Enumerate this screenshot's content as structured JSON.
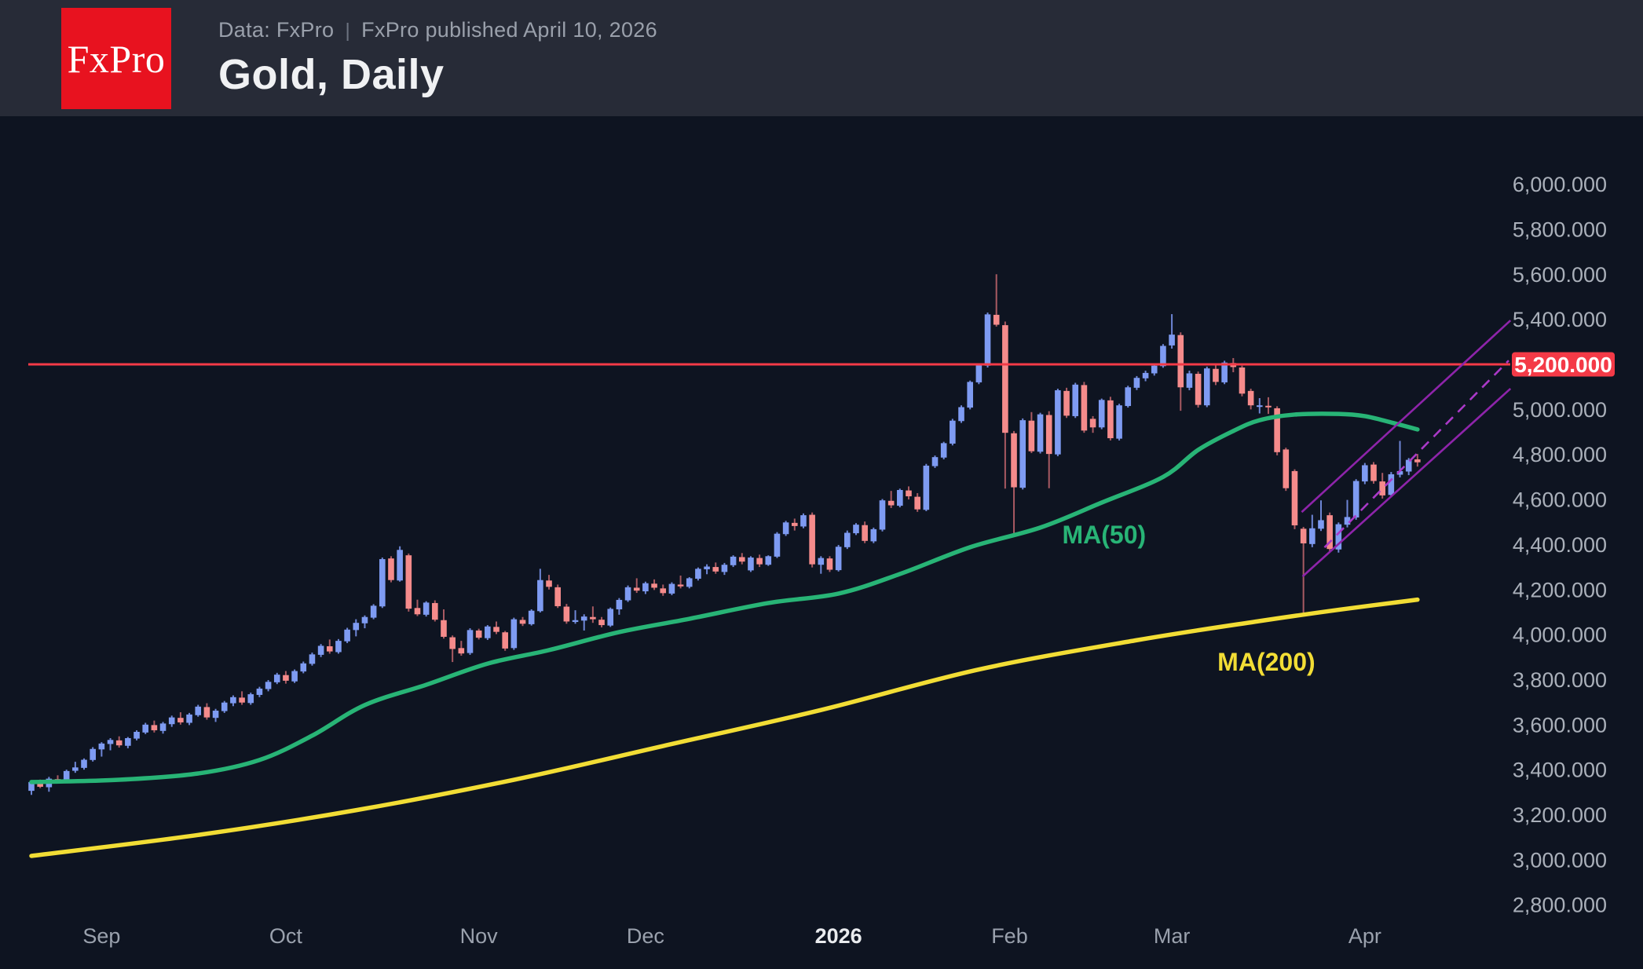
{
  "header": {
    "logo_text": "FxPro",
    "source": "Data: FxPro",
    "divider": "|",
    "published": "FxPro published April 10, 2026",
    "title": "Gold, Daily"
  },
  "colors": {
    "header_bg": "#272b37",
    "chart_bg": "#0e1421",
    "logo_bg": "#e8121f",
    "up_body": "#7e9bf2",
    "down_body": "#f58b8b",
    "up_wick": "#6e86d6",
    "down_wick": "#a85a62",
    "ma50": "#28b476",
    "ma200": "#f2dd35",
    "hline": "#f43a47",
    "badge_bg": "#f43a47",
    "badge_text": "#ffffff",
    "channel": "#8e24aa",
    "channel_dashed": "#aa39c8",
    "axis_text": "#aab0ba",
    "month_text": "#9aa1ad",
    "year_text": "#e9ebee"
  },
  "chart_data": {
    "type": "candlestick",
    "symbol": "Gold",
    "timeframe": "Daily",
    "title": "Gold, Daily",
    "grid": false,
    "legend_position": "none",
    "y_axis": {
      "side": "right",
      "min": 2700,
      "max": 6100,
      "tick_values": [
        6000,
        5800,
        5600,
        5400,
        5000,
        4800,
        4600,
        4400,
        4200,
        4000,
        3800,
        3600,
        3400,
        3200,
        3000,
        2800
      ],
      "tick_labels": [
        "6,000.000",
        "5,800.000",
        "5,600.000",
        "5,400.000",
        "5,000.000",
        "4,800.000",
        "4,600.000",
        "4,400.000",
        "4,200.000",
        "4,000.000",
        "3,800.000",
        "3,600.000",
        "3,400.000",
        "3,200.000",
        "3,000.000",
        "2,800.000"
      ]
    },
    "x_axis": {
      "ticks": [
        {
          "label": "Sep",
          "index": 8,
          "bold": false
        },
        {
          "label": "Oct",
          "index": 29,
          "bold": false
        },
        {
          "label": "Nov",
          "index": 51,
          "bold": false
        },
        {
          "label": "Dec",
          "index": 70,
          "bold": false
        },
        {
          "label": "2026",
          "index": 92,
          "bold": true
        },
        {
          "label": "Feb",
          "index": 111.5,
          "bold": false
        },
        {
          "label": "Mar",
          "index": 130,
          "bold": false
        },
        {
          "label": "Apr",
          "index": 152,
          "bold": false
        }
      ]
    },
    "resistance_line": {
      "price": 5200,
      "label": "5,200.000"
    },
    "ma50": {
      "label": "MA(50)",
      "label_index": 117.5,
      "label_price": 4443,
      "points": [
        [
          0,
          3345
        ],
        [
          10,
          3355
        ],
        [
          19,
          3383
        ],
        [
          26,
          3443
        ],
        [
          32,
          3551
        ],
        [
          38,
          3687
        ],
        [
          45,
          3777
        ],
        [
          52,
          3871
        ],
        [
          59,
          3931
        ],
        [
          67,
          4011
        ],
        [
          75,
          4070
        ],
        [
          84,
          4140
        ],
        [
          92,
          4182
        ],
        [
          99,
          4269
        ],
        [
          107,
          4388
        ],
        [
          115,
          4475
        ],
        [
          122,
          4586
        ],
        [
          129,
          4700
        ],
        [
          133,
          4820
        ],
        [
          137,
          4904
        ],
        [
          140,
          4952
        ],
        [
          144,
          4977
        ],
        [
          149,
          4980
        ],
        [
          152,
          4970
        ],
        [
          155,
          4942
        ],
        [
          158,
          4911
        ]
      ]
    },
    "ma200": {
      "label": "MA(200)",
      "label_index": 135.2,
      "label_price": 3878,
      "points": [
        [
          0,
          3017
        ],
        [
          19,
          3110
        ],
        [
          37,
          3220
        ],
        [
          55,
          3355
        ],
        [
          72,
          3505
        ],
        [
          90,
          3665
        ],
        [
          108,
          3845
        ],
        [
          126,
          3975
        ],
        [
          140,
          4060
        ],
        [
          149,
          4110
        ],
        [
          158,
          4155
        ]
      ]
    },
    "channel": {
      "upper": [
        [
          144.8,
          4544
        ],
        [
          168.6,
          5395
        ]
      ],
      "lower": [
        [
          144.9,
          4258
        ],
        [
          168.6,
          5092
        ]
      ],
      "median": [
        [
          147.4,
          4387
        ],
        [
          168.4,
          5217
        ]
      ]
    },
    "candles": [
      [
        3306,
        3352,
        3288,
        3345
      ],
      [
        3345,
        3356,
        3318,
        3324
      ],
      [
        3322,
        3368,
        3302,
        3360
      ],
      [
        3358,
        3375,
        3340,
        3352
      ],
      [
        3354,
        3400,
        3348,
        3394
      ],
      [
        3395,
        3435,
        3386,
        3410
      ],
      [
        3408,
        3450,
        3400,
        3444
      ],
      [
        3443,
        3500,
        3436,
        3492
      ],
      [
        3490,
        3522,
        3458,
        3516
      ],
      [
        3514,
        3540,
        3486,
        3532
      ],
      [
        3530,
        3548,
        3498,
        3508
      ],
      [
        3506,
        3545,
        3495,
        3540
      ],
      [
        3538,
        3575,
        3530,
        3568
      ],
      [
        3565,
        3608,
        3558,
        3600
      ],
      [
        3598,
        3618,
        3565,
        3575
      ],
      [
        3572,
        3612,
        3560,
        3605
      ],
      [
        3602,
        3640,
        3590,
        3632
      ],
      [
        3630,
        3655,
        3600,
        3610
      ],
      [
        3608,
        3652,
        3598,
        3645
      ],
      [
        3642,
        3688,
        3635,
        3680
      ],
      [
        3678,
        3695,
        3622,
        3632
      ],
      [
        3630,
        3670,
        3612,
        3662
      ],
      [
        3660,
        3705,
        3652,
        3698
      ],
      [
        3695,
        3730,
        3682,
        3722
      ],
      [
        3720,
        3748,
        3688,
        3698
      ],
      [
        3696,
        3742,
        3688,
        3735
      ],
      [
        3732,
        3768,
        3722,
        3760
      ],
      [
        3758,
        3798,
        3748,
        3790
      ],
      [
        3788,
        3830,
        3780,
        3822
      ],
      [
        3820,
        3838,
        3782,
        3795
      ],
      [
        3792,
        3845,
        3785,
        3838
      ],
      [
        3836,
        3880,
        3828,
        3872
      ],
      [
        3870,
        3920,
        3862,
        3912
      ],
      [
        3910,
        3958,
        3900,
        3950
      ],
      [
        3948,
        3978,
        3915,
        3925
      ],
      [
        3922,
        3980,
        3915,
        3972
      ],
      [
        3970,
        4030,
        3962,
        4022
      ],
      [
        4020,
        4068,
        3992,
        4052
      ],
      [
        4050,
        4085,
        4028,
        4078
      ],
      [
        4075,
        4135,
        4068,
        4128
      ],
      [
        4125,
        4342,
        4118,
        4335
      ],
      [
        4338,
        4348,
        4232,
        4242
      ],
      [
        4240,
        4392,
        4235,
        4376
      ],
      [
        4352,
        4360,
        4102,
        4115
      ],
      [
        4118,
        4155,
        4082,
        4090
      ],
      [
        4088,
        4148,
        4080,
        4142
      ],
      [
        4140,
        4152,
        4058,
        4066
      ],
      [
        4064,
        4112,
        3982,
        3990
      ],
      [
        3988,
        3996,
        3878,
        3936
      ],
      [
        3940,
        3972,
        3906,
        3916
      ],
      [
        3918,
        4028,
        3910,
        4020
      ],
      [
        4018,
        4026,
        3978,
        3986
      ],
      [
        3984,
        4042,
        3976,
        4036
      ],
      [
        4034,
        4058,
        4002,
        4012
      ],
      [
        4010,
        4016,
        3928,
        3938
      ],
      [
        3940,
        4075,
        3932,
        4068
      ],
      [
        4065,
        4078,
        4038,
        4048
      ],
      [
        4046,
        4112,
        4040,
        4106
      ],
      [
        4104,
        4292,
        4098,
        4242
      ],
      [
        4240,
        4265,
        4200,
        4212
      ],
      [
        4210,
        4222,
        4118,
        4126
      ],
      [
        4124,
        4136,
        4048,
        4058
      ],
      [
        4056,
        4108,
        4048,
        4064
      ],
      [
        4062,
        4090,
        4018,
        4080
      ],
      [
        4078,
        4125,
        4052,
        4068
      ],
      [
        4066,
        4078,
        4032,
        4042
      ],
      [
        4040,
        4120,
        4034,
        4114
      ],
      [
        4112,
        4162,
        4088,
        4154
      ],
      [
        4152,
        4218,
        4145,
        4210
      ],
      [
        4208,
        4250,
        4185,
        4195
      ],
      [
        4192,
        4235,
        4180,
        4228
      ],
      [
        4226,
        4245,
        4198,
        4208
      ],
      [
        4205,
        4222,
        4172,
        4184
      ],
      [
        4182,
        4232,
        4175,
        4225
      ],
      [
        4222,
        4262,
        4205,
        4214
      ],
      [
        4212,
        4255,
        4205,
        4250
      ],
      [
        4248,
        4298,
        4240,
        4292
      ],
      [
        4290,
        4312,
        4268,
        4302
      ],
      [
        4300,
        4320,
        4270,
        4280
      ],
      [
        4278,
        4318,
        4265,
        4310
      ],
      [
        4308,
        4352,
        4300,
        4346
      ],
      [
        4344,
        4362,
        4312,
        4324
      ],
      [
        4285,
        4348,
        4278,
        4342
      ],
      [
        4340,
        4355,
        4300,
        4312
      ],
      [
        4310,
        4352,
        4305,
        4348
      ],
      [
        4346,
        4455,
        4340,
        4448
      ],
      [
        4446,
        4505,
        4438,
        4498
      ],
      [
        4496,
        4515,
        4462,
        4482
      ],
      [
        4480,
        4538,
        4472,
        4530
      ],
      [
        4532,
        4542,
        4298,
        4312
      ],
      [
        4310,
        4348,
        4270,
        4340
      ],
      [
        4338,
        4348,
        4278,
        4288
      ],
      [
        4286,
        4398,
        4280,
        4390
      ],
      [
        4388,
        4462,
        4380,
        4452
      ],
      [
        4450,
        4495,
        4442,
        4488
      ],
      [
        4486,
        4502,
        4406,
        4416
      ],
      [
        4414,
        4475,
        4406,
        4468
      ],
      [
        4466,
        4602,
        4458,
        4596
      ],
      [
        4594,
        4638,
        4562,
        4574
      ],
      [
        4572,
        4648,
        4565,
        4642
      ],
      [
        4640,
        4658,
        4600,
        4614
      ],
      [
        4612,
        4628,
        4545,
        4556
      ],
      [
        4554,
        4758,
        4548,
        4750
      ],
      [
        4748,
        4795,
        4740,
        4788
      ],
      [
        4786,
        4856,
        4778,
        4850
      ],
      [
        4848,
        4958,
        4840,
        4950
      ],
      [
        4948,
        5018,
        4940,
        5010
      ],
      [
        5008,
        5128,
        5000,
        5122
      ],
      [
        5120,
        5202,
        5112,
        5196
      ],
      [
        5194,
        5430,
        5186,
        5422
      ],
      [
        5420,
        5600,
        5368,
        5376
      ],
      [
        5374,
        5390,
        4648,
        4896
      ],
      [
        4894,
        4904,
        4446,
        4654
      ],
      [
        4652,
        4960,
        4644,
        4952
      ],
      [
        4950,
        4988,
        4806,
        4814
      ],
      [
        4812,
        4985,
        4804,
        4978
      ],
      [
        4975,
        4992,
        4650,
        4802
      ],
      [
        4800,
        5092,
        4792,
        5085
      ],
      [
        5082,
        5096,
        4962,
        4972
      ],
      [
        4970,
        5118,
        4962,
        5110
      ],
      [
        5108,
        5122,
        4896,
        4906
      ],
      [
        4958,
        4970,
        4896,
        4920
      ],
      [
        4920,
        5048,
        4912,
        5042
      ],
      [
        5040,
        5056,
        4862,
        4872
      ],
      [
        4870,
        5025,
        4862,
        5018
      ],
      [
        5015,
        5105,
        5008,
        5098
      ],
      [
        5096,
        5148,
        5086,
        5140
      ],
      [
        5138,
        5172,
        5125,
        5162
      ],
      [
        5160,
        5205,
        5150,
        5194
      ],
      [
        5192,
        5290,
        5185,
        5282
      ],
      [
        5284,
        5423,
        5270,
        5332
      ],
      [
        5330,
        5342,
        4994,
        5098
      ],
      [
        5096,
        5172,
        5085,
        5160
      ],
      [
        5158,
        5168,
        5008,
        5020
      ],
      [
        5018,
        5190,
        5010,
        5182
      ],
      [
        5180,
        5198,
        5108,
        5122
      ],
      [
        5120,
        5216,
        5112,
        5208
      ],
      [
        5206,
        5228,
        5165,
        5188
      ],
      [
        5186,
        5194,
        5058,
        5070
      ],
      [
        5082,
        5092,
        5000,
        5018
      ],
      [
        5012,
        5050,
        4982,
        5018
      ],
      [
        5016,
        5054,
        4980,
        5012
      ],
      [
        5005,
        5014,
        4796,
        4810
      ],
      [
        4822,
        4830,
        4638,
        4650
      ],
      [
        4726,
        4734,
        4468,
        4485
      ],
      [
        4470,
        4478,
        4098,
        4405
      ],
      [
        4402,
        4532,
        4388,
        4472
      ],
      [
        4470,
        4596,
        4460,
        4508
      ],
      [
        4530,
        4542,
        4370,
        4380
      ],
      [
        4378,
        4498,
        4364,
        4490
      ],
      [
        4488,
        4598,
        4476,
        4522
      ],
      [
        4520,
        4690,
        4510,
        4682
      ],
      [
        4680,
        4762,
        4668,
        4752
      ],
      [
        4755,
        4766,
        4670,
        4682
      ],
      [
        4680,
        4718,
        4604,
        4618
      ],
      [
        4620,
        4722,
        4610,
        4712
      ],
      [
        4710,
        4860,
        4698,
        4726
      ],
      [
        4724,
        4784,
        4708,
        4776
      ],
      [
        4778,
        4802,
        4746,
        4765
      ]
    ]
  }
}
